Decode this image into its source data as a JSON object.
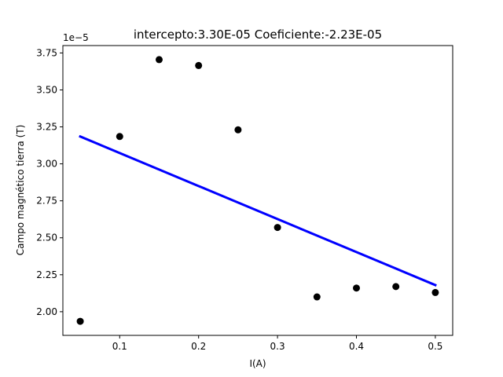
{
  "chart_data": {
    "type": "scatter",
    "title": "intercepto:3.30E-05 Coeficiente:-2.23E-05",
    "xlabel": "I(A)",
    "ylabel": "Campo magnético tierra (T)",
    "y_offset_label": "1e−5",
    "xlim": [
      0.028,
      0.522
    ],
    "ylim": [
      1.84,
      3.8
    ],
    "x_ticks": [
      0.1,
      0.2,
      0.3,
      0.4,
      0.5
    ],
    "x_tick_labels": [
      "0.1",
      "0.2",
      "0.3",
      "0.4",
      "0.5"
    ],
    "y_ticks": [
      2.0,
      2.25,
      2.5,
      2.75,
      3.0,
      3.25,
      3.5,
      3.75
    ],
    "y_tick_labels": [
      "2.00",
      "2.25",
      "2.50",
      "2.75",
      "3.00",
      "3.25",
      "3.50",
      "3.75"
    ],
    "grid": false,
    "points": {
      "color": "#000000",
      "x": [
        0.05,
        0.1,
        0.15,
        0.2,
        0.25,
        0.3,
        0.35,
        0.4,
        0.45,
        0.5
      ],
      "y": [
        1.935,
        3.185,
        3.705,
        3.665,
        3.23,
        2.57,
        2.1,
        2.16,
        2.17,
        2.13
      ]
    },
    "fit_line": {
      "color": "#0000ff",
      "x": [
        0.05,
        0.5
      ],
      "y": [
        3.185,
        2.18
      ]
    }
  }
}
